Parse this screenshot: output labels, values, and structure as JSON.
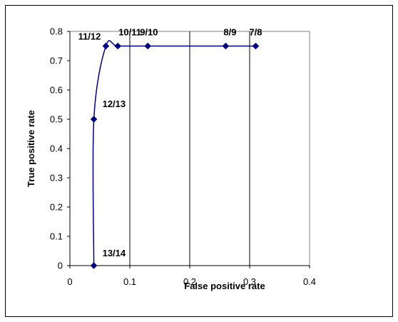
{
  "chart_data": {
    "type": "line",
    "title": "",
    "xlabel": "False positive rate",
    "ylabel": "True positive rate",
    "xlim": [
      0,
      0.4
    ],
    "ylim": [
      0,
      0.8
    ],
    "x_ticks": [
      "0",
      "0.1",
      "0.2",
      "0.3",
      "0.4"
    ],
    "y_ticks": [
      "0",
      "0.1",
      "0.2",
      "0.3",
      "0.4",
      "0.5",
      "0.6",
      "0.7",
      "0.8"
    ],
    "grid": "vertical",
    "line_color": "#000080",
    "smoothed": true,
    "series": [
      {
        "points": [
          {
            "x": 0.04,
            "y": 0.0,
            "label": "13/14"
          },
          {
            "x": 0.04,
            "y": 0.5,
            "label": "12/13"
          },
          {
            "x": 0.06,
            "y": 0.75,
            "label": "11/12"
          },
          {
            "x": 0.08,
            "y": 0.75,
            "label": "10/11"
          },
          {
            "x": 0.13,
            "y": 0.75,
            "label": "9/10"
          },
          {
            "x": 0.26,
            "y": 0.75,
            "label": "8/9"
          },
          {
            "x": 0.31,
            "y": 0.75,
            "label": "7/8"
          }
        ]
      }
    ]
  }
}
